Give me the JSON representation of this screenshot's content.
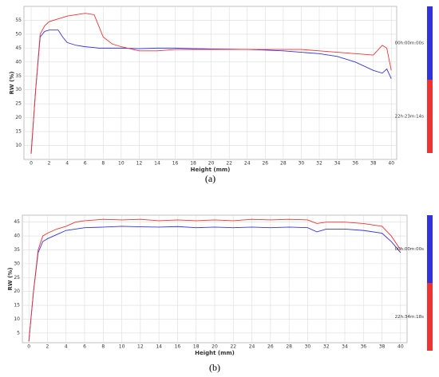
{
  "chart_data": [
    {
      "type": "line",
      "caption": "(a)",
      "x_label": "Height (mm)",
      "y_label": "RW (%)",
      "x": [
        0,
        0.5,
        1,
        1.5,
        2,
        3,
        3.5,
        4,
        5,
        6,
        7,
        7.5,
        8,
        9,
        10,
        12,
        14,
        16,
        18,
        20,
        22,
        24,
        26,
        28,
        30,
        32,
        34,
        36,
        38,
        39,
        39.5,
        40
      ],
      "series": [
        {
          "name": "00h:00m:00s",
          "color": "#3333dd",
          "values": [
            7,
            30,
            49,
            51,
            51.5,
            51.5,
            49,
            47,
            46,
            45.5,
            45.2,
            45,
            45,
            45,
            45,
            44.8,
            45,
            45,
            44.8,
            44.7,
            44.6,
            44.5,
            44.3,
            44,
            43.5,
            43,
            42,
            40,
            37,
            36,
            37.5,
            34
          ]
        },
        {
          "name": "22h:23m:14s",
          "color": "#ee3333",
          "values": [
            7,
            30,
            50,
            53,
            54.5,
            55.5,
            56,
            56.5,
            57,
            57.5,
            57,
            53,
            49,
            46.5,
            45.5,
            44,
            44,
            44.5,
            44.5,
            44.5,
            44.5,
            44.5,
            44.5,
            44.5,
            44.5,
            44,
            43.5,
            43,
            42.5,
            46,
            45,
            37
          ]
        }
      ],
      "xlim": [
        -0.8,
        40.6
      ],
      "xticks": [
        0,
        2,
        4,
        6,
        8,
        10,
        12,
        14,
        16,
        18,
        20,
        22,
        24,
        26,
        28,
        30,
        32,
        34,
        36,
        38,
        40
      ],
      "ylim": [
        5,
        60
      ],
      "yticks": [
        10,
        15,
        20,
        25,
        30,
        35,
        40,
        45,
        50,
        55
      ],
      "grid": true
    },
    {
      "type": "line",
      "caption": "(b)",
      "x_label": "Height (mm)",
      "y_label": "RW (%)",
      "x": [
        0,
        0.5,
        1,
        1.5,
        2,
        3,
        4,
        5,
        6,
        8,
        10,
        12,
        14,
        16,
        18,
        20,
        22,
        24,
        26,
        28,
        30,
        31,
        32,
        34,
        36,
        38,
        39,
        40
      ],
      "series": [
        {
          "name": "00h:00m:00s",
          "color": "#3333dd",
          "values": [
            2,
            20,
            34,
            38,
            39,
            40.5,
            42,
            42.5,
            43,
            43.2,
            43.5,
            43.3,
            43.2,
            43.4,
            43,
            43.2,
            43,
            43.2,
            43,
            43.2,
            43,
            41.5,
            42.5,
            42.5,
            42,
            41,
            38,
            34
          ]
        },
        {
          "name": "22h:34m:18s",
          "color": "#ee3333",
          "values": [
            2,
            20,
            35,
            40,
            41,
            42.5,
            43.5,
            45,
            45.5,
            46,
            45.8,
            46,
            45.5,
            45.8,
            45.5,
            45.8,
            45.5,
            46,
            45.8,
            46,
            45.8,
            44.5,
            45,
            45,
            44.5,
            43.5,
            40,
            35
          ]
        }
      ],
      "xlim": [
        -0.7,
        40.7
      ],
      "xticks": [
        0,
        2,
        4,
        6,
        8,
        10,
        12,
        14,
        16,
        18,
        20,
        22,
        24,
        26,
        28,
        30,
        32,
        34,
        36,
        38,
        40
      ],
      "ylim": [
        1.5,
        47.5
      ],
      "yticks": [
        5,
        10,
        15,
        20,
        25,
        30,
        35,
        40,
        45
      ],
      "grid": true
    }
  ]
}
